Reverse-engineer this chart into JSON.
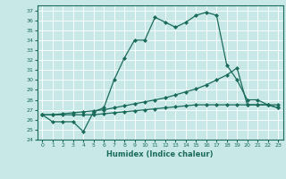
{
  "title": "",
  "xlabel": "Humidex (Indice chaleur)",
  "ylabel": "",
  "bg_color": "#c8e8e8",
  "line_color": "#1a6b5a",
  "grid_color": "#ffffff",
  "xlim": [
    -0.5,
    23.5
  ],
  "ylim": [
    24,
    37.5
  ],
  "yticks": [
    24,
    25,
    26,
    27,
    28,
    29,
    30,
    31,
    32,
    33,
    34,
    35,
    36,
    37
  ],
  "xticks": [
    0,
    1,
    2,
    3,
    4,
    5,
    6,
    7,
    8,
    9,
    10,
    11,
    12,
    13,
    14,
    15,
    16,
    17,
    18,
    19,
    20,
    21,
    22,
    23
  ],
  "line1_x": [
    0,
    1,
    2,
    3,
    4,
    5,
    6,
    7,
    8,
    9,
    10,
    11,
    12,
    13,
    14,
    15,
    16,
    17,
    18,
    19,
    20,
    21,
    22,
    23
  ],
  "line1_y": [
    26.5,
    25.8,
    25.8,
    25.8,
    24.8,
    26.8,
    27.2,
    30.0,
    32.2,
    34.0,
    34.0,
    36.3,
    35.8,
    35.3,
    35.8,
    36.5,
    36.8,
    36.5,
    31.5,
    30.0,
    28.0,
    28.0,
    27.5,
    27.2
  ],
  "line2_x": [
    0,
    1,
    2,
    3,
    4,
    5,
    6,
    7,
    8,
    9,
    10,
    11,
    12,
    13,
    14,
    15,
    16,
    17,
    18,
    19,
    20,
    21,
    22,
    23
  ],
  "line2_y": [
    26.5,
    26.5,
    26.6,
    26.7,
    26.8,
    26.9,
    27.0,
    27.2,
    27.4,
    27.6,
    27.8,
    28.0,
    28.2,
    28.5,
    28.8,
    29.1,
    29.5,
    30.0,
    30.5,
    31.2,
    27.5,
    27.5,
    27.5,
    27.5
  ],
  "line3_x": [
    0,
    1,
    2,
    3,
    4,
    5,
    6,
    7,
    8,
    9,
    10,
    11,
    12,
    13,
    14,
    15,
    16,
    17,
    18,
    19,
    20,
    21,
    22,
    23
  ],
  "line3_y": [
    26.5,
    26.5,
    26.5,
    26.5,
    26.5,
    26.5,
    26.6,
    26.7,
    26.8,
    26.9,
    27.0,
    27.1,
    27.2,
    27.3,
    27.4,
    27.5,
    27.5,
    27.5,
    27.5,
    27.5,
    27.5,
    27.5,
    27.5,
    27.2
  ],
  "marker": "D",
  "markersize": 2,
  "linewidth": 0.9
}
